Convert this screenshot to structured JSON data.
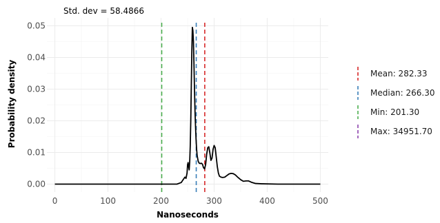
{
  "chart_data": {
    "type": "line",
    "subtitle": "Std. dev = 58.4866",
    "xlabel": "Nanoseconds",
    "ylabel": "Probability density",
    "xlim": [
      -15,
      515
    ],
    "ylim": [
      -0.0025,
      0.0525
    ],
    "x_ticks": [
      0,
      100,
      200,
      300,
      400,
      500
    ],
    "y_ticks": [
      0.0,
      0.01,
      0.02,
      0.03,
      0.04,
      0.05
    ],
    "x_tick_labels": [
      "0",
      "100",
      "200",
      "300",
      "400",
      "500"
    ],
    "y_tick_labels": [
      "0.00",
      "0.01",
      "0.02",
      "0.03",
      "0.04",
      "0.05"
    ],
    "grid": true,
    "legend_position": "right",
    "series": [
      {
        "color": "#000000",
        "x": [
          0,
          100,
          200,
          230,
          238,
          242,
          245,
          247,
          249,
          250,
          251,
          252,
          253,
          254,
          255,
          256,
          257,
          258,
          259,
          260,
          261,
          262,
          263,
          264,
          265,
          266,
          267,
          268,
          270,
          272,
          274,
          276,
          278,
          280,
          282,
          284,
          286,
          288,
          290,
          292,
          294,
          296,
          298,
          300,
          302,
          304,
          306,
          308,
          310,
          313,
          316,
          320,
          324,
          328,
          332,
          336,
          340,
          345,
          350,
          355,
          360,
          365,
          370,
          378,
          390,
          420,
          460,
          500
        ],
        "y": [
          0,
          0,
          0,
          0,
          0.0005,
          0.0015,
          0.0022,
          0.0018,
          0.0035,
          0.0062,
          0.0068,
          0.0055,
          0.0045,
          0.007,
          0.012,
          0.02,
          0.031,
          0.042,
          0.0495,
          0.0485,
          0.045,
          0.038,
          0.03,
          0.023,
          0.018,
          0.014,
          0.011,
          0.009,
          0.0072,
          0.0066,
          0.0065,
          0.0066,
          0.0063,
          0.0052,
          0.0048,
          0.0062,
          0.0095,
          0.0115,
          0.0118,
          0.0098,
          0.0075,
          0.0082,
          0.011,
          0.0122,
          0.0115,
          0.0085,
          0.0055,
          0.0035,
          0.0025,
          0.0022,
          0.0021,
          0.0022,
          0.0027,
          0.0032,
          0.0034,
          0.0033,
          0.0029,
          0.0021,
          0.0014,
          0.0009,
          0.001,
          0.001,
          0.0006,
          0.0002,
          0.0001,
          0,
          0,
          0
        ]
      }
    ],
    "vlines": [
      {
        "label": "Mean: 282.33",
        "x": 282.33,
        "color": "#d62728"
      },
      {
        "label": "Median: 266.30",
        "x": 266.3,
        "color": "#3a7fb8"
      },
      {
        "label": "Min: 201.30",
        "x": 201.3,
        "color": "#4caf50"
      },
      {
        "label": "Max: 34951.70",
        "x": 34951.7,
        "color": "#8e44ad"
      }
    ]
  }
}
